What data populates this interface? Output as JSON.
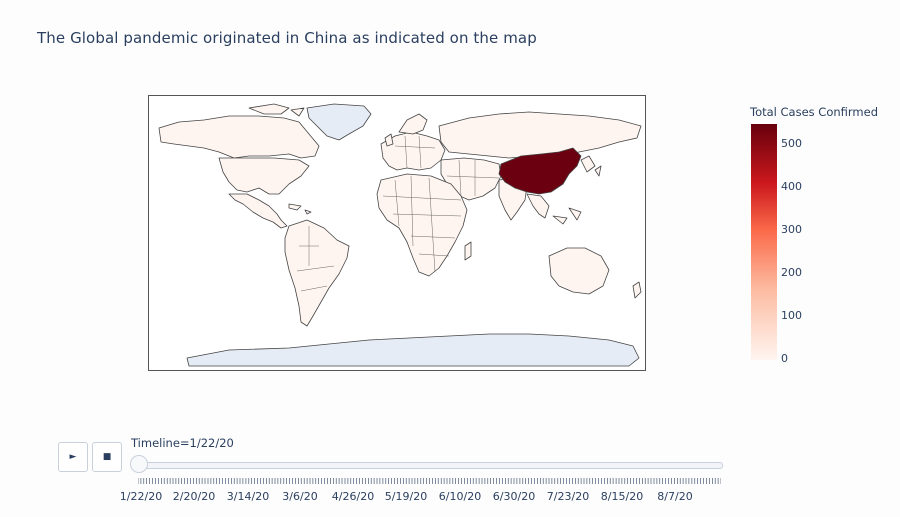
{
  "chart_title": "The Global pandemic originated in China as indicated on the map",
  "colorbar": {
    "title": "Total Cases Confirmed",
    "ticks": [
      "500",
      "400",
      "300",
      "200",
      "100",
      "0"
    ],
    "range": [
      0,
      547
    ],
    "colors": [
      "#fff5f0",
      "#fcbba1",
      "#fb6a4a",
      "#cb181d",
      "#67000d"
    ]
  },
  "map": {
    "highlighted_country": "China",
    "highlighted_value": 547,
    "highlight_color": "#6b0010",
    "land_color": "#fff5f0",
    "ice_color": "#e6ecf5",
    "border_color": "#444444"
  },
  "controls": {
    "play_icon": "play-icon",
    "stop_icon": "stop-icon",
    "play_glyph": "►",
    "stop_glyph": "■"
  },
  "slider": {
    "label": "Timeline=1/22/20",
    "tick_labels": [
      "1/22/20",
      "2/20/20",
      "3/14/20",
      "3/6/20",
      "4/26/20",
      "5/19/20",
      "6/10/20",
      "6/30/20",
      "7/23/20",
      "8/15/20",
      "8/7/20"
    ],
    "position_fraction": 0
  }
}
